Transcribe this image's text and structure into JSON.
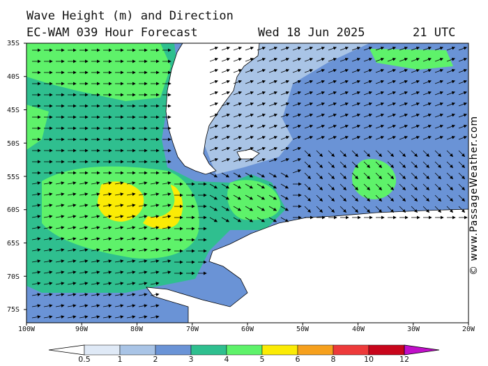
{
  "title": {
    "line1": "Wave Height (m) and Direction",
    "model": "EC-WAM 039 Hour Forecast",
    "date": "Wed 18 Jun 2025",
    "time": "21 UTC"
  },
  "latitudes": [
    "35S",
    "40S",
    "45S",
    "50S",
    "55S",
    "60S",
    "65S",
    "70S",
    "75S"
  ],
  "longitudes": [
    "100W",
    "90W",
    "80W",
    "70W",
    "60W",
    "50W",
    "40W",
    "30W",
    "20W"
  ],
  "watermark": "© www.PassageWeather.com",
  "colorbar": {
    "labels": [
      "0.5",
      "1",
      "2",
      "3",
      "4",
      "5",
      "6",
      "8",
      "10",
      "12"
    ],
    "colors": [
      "#dfe9f6",
      "#a9c4e6",
      "#6a93d6",
      "#2fbf8f",
      "#5ef26a",
      "#fbeb05",
      "#f6a01d",
      "#ed3a3a",
      "#c8061c",
      "#c10fc9"
    ]
  },
  "map_colors": {
    "ocean_low": "#a9c4e6",
    "ocean_mid": "#6a93d6",
    "ocean_3to4": "#2fbf8f",
    "ocean_4to5": "#5ef26a",
    "ocean_5to6": "#fbeb05",
    "land": "#ffffff",
    "ice": "#ffffff"
  }
}
